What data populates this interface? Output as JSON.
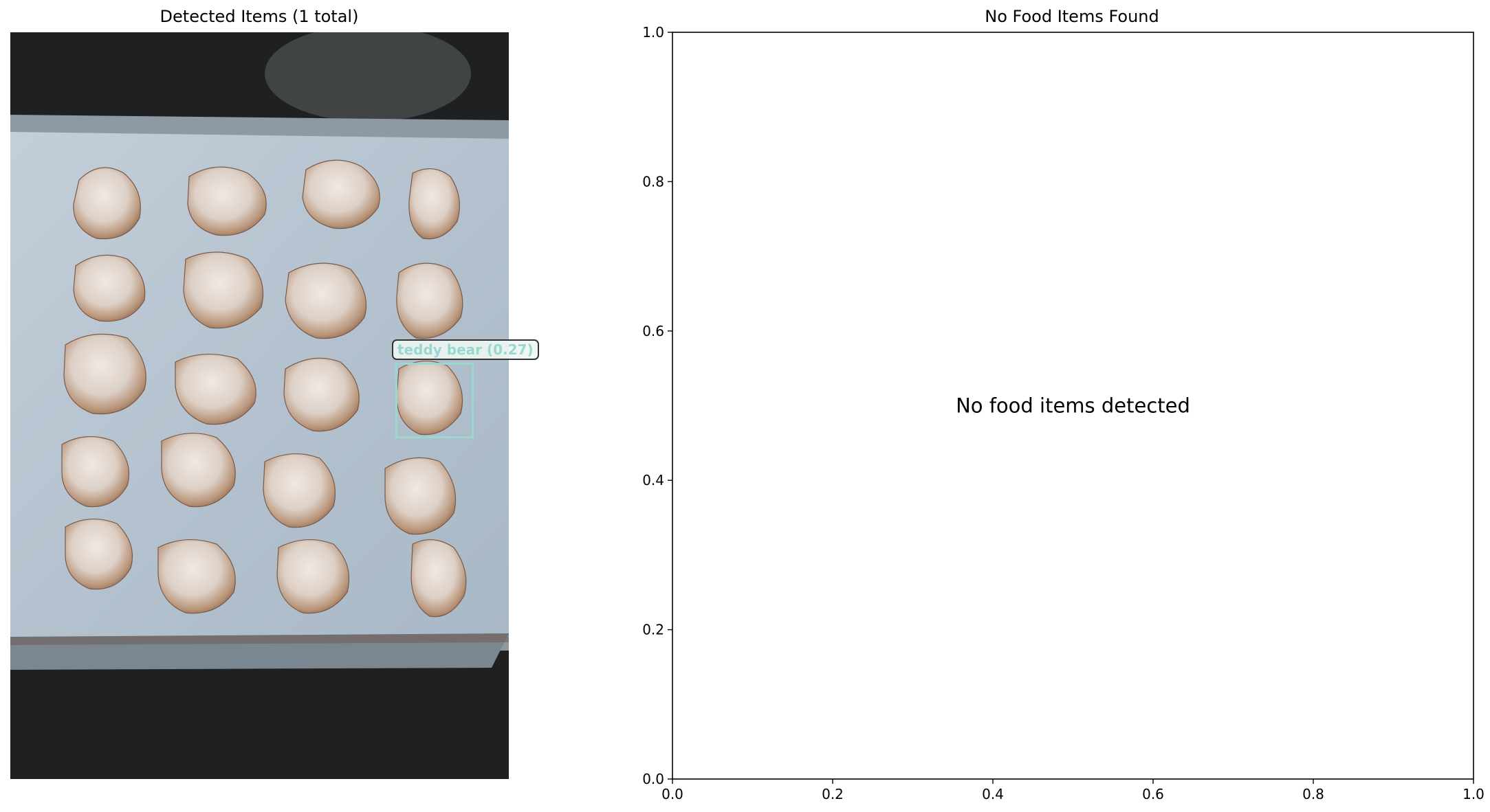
{
  "left_panel": {
    "title": "Detected Items (1 total)",
    "detections": [
      {
        "label": "teddy bear (0.27)",
        "color": "#9ad8cf"
      }
    ]
  },
  "colors": {
    "detection_box": "#9ad8cf",
    "axis": "#000000",
    "background": "#ffffff"
  },
  "chart_data": {
    "type": "scatter",
    "title": "No Food Items Found",
    "message": "No food items detected",
    "xlabel": "",
    "ylabel": "",
    "xlim": [
      0.0,
      1.0
    ],
    "ylim": [
      0.0,
      1.0
    ],
    "xticks": [
      "0.0",
      "0.2",
      "0.4",
      "0.6",
      "0.8",
      "1.0"
    ],
    "yticks": [
      "0.0",
      "0.2",
      "0.4",
      "0.6",
      "0.8",
      "1.0"
    ],
    "series": [],
    "grid": false,
    "legend": "none"
  }
}
